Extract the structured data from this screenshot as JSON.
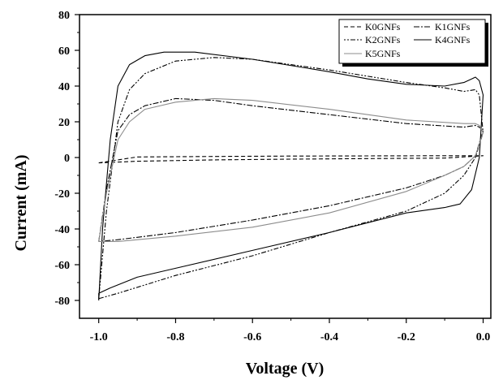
{
  "chart_data": {
    "type": "line",
    "title": "",
    "xlabel": "Voltage (V)",
    "ylabel": "Current (mA)",
    "xlim": [
      -1.05,
      0.02
    ],
    "ylim": [
      -90,
      80
    ],
    "x_ticks": [
      -1.0,
      -0.8,
      -0.6,
      -0.4,
      -0.2,
      0.0
    ],
    "x_tick_labels": [
      "-1.0",
      "-0.8",
      "-0.6",
      "-0.4",
      "-0.2",
      "0.0"
    ],
    "y_ticks": [
      -80,
      -60,
      -40,
      -20,
      0,
      20,
      40,
      60,
      80
    ],
    "y_tick_labels": [
      "-80",
      "-60",
      "-40",
      "-20",
      "0",
      "20",
      "40",
      "60",
      "80"
    ],
    "grid": false,
    "legend_position": "top-right",
    "series": [
      {
        "name": "K0GNFs",
        "dash": "5,3",
        "x": [
          -1.0,
          -0.9,
          -0.7,
          -0.5,
          -0.3,
          -0.1,
          0.0,
          -0.1,
          -0.3,
          -0.5,
          -0.7,
          -0.9,
          -1.0
        ],
        "y": [
          -3,
          0.3,
          0.6,
          0.8,
          0.9,
          1.0,
          1.0,
          -0.3,
          -0.6,
          -0.9,
          -1.3,
          -2.1,
          -3
        ]
      },
      {
        "name": "K1GNFs",
        "dash": "7,2,2,2",
        "x": [
          -1.0,
          -0.98,
          -0.95,
          -0.92,
          -0.88,
          -0.8,
          -0.7,
          -0.6,
          -0.4,
          -0.2,
          -0.05,
          -0.02,
          -0.01,
          0.0,
          -0.02,
          -0.05,
          -0.1,
          -0.2,
          -0.4,
          -0.6,
          -0.8,
          -0.95,
          -1.0
        ],
        "y": [
          -47,
          -18,
          15,
          24,
          29,
          33,
          32,
          29,
          24,
          19,
          17,
          18,
          17,
          15,
          1,
          -5,
          -10,
          -17,
          -27,
          -35,
          -42,
          -46,
          -47
        ]
      },
      {
        "name": "K2GNFs",
        "dash": "2,2,2,2,6,2",
        "x": [
          -1.0,
          -0.98,
          -0.95,
          -0.92,
          -0.88,
          -0.8,
          -0.7,
          -0.6,
          -0.5,
          -0.4,
          -0.2,
          -0.1,
          -0.05,
          -0.02,
          -0.01,
          0.0,
          -0.02,
          -0.05,
          -0.1,
          -0.2,
          -0.4,
          -0.6,
          -0.8,
          -0.95,
          -1.0
        ],
        "y": [
          -79,
          -30,
          20,
          38,
          47,
          54,
          56,
          55,
          52,
          49,
          42,
          39,
          37,
          38,
          35,
          14,
          0,
          -10,
          -20,
          -30,
          -42,
          -55,
          -66,
          -76,
          -79
        ]
      },
      {
        "name": "K4GNFs",
        "dash": "",
        "x": [
          -1.0,
          -0.99,
          -0.97,
          -0.95,
          -0.92,
          -0.88,
          -0.83,
          -0.75,
          -0.6,
          -0.4,
          -0.3,
          -0.2,
          -0.1,
          -0.05,
          -0.03,
          -0.02,
          -0.01,
          0.0,
          -0.01,
          -0.03,
          -0.06,
          -0.1,
          -0.2,
          -0.4,
          -0.6,
          -0.8,
          -0.9,
          -0.97,
          -1.0,
          -1.0
        ],
        "y": [
          -80,
          -40,
          10,
          40,
          52,
          57,
          59,
          59,
          55,
          48,
          44,
          41,
          40,
          42,
          44,
          45,
          43,
          35,
          0,
          -18,
          -26,
          -28,
          -31,
          -42,
          -52,
          -62,
          -67,
          -73,
          -76,
          -80
        ]
      },
      {
        "name": "K5GNFs",
        "dash": "",
        "color": "#8c8c8c",
        "x": [
          -1.0,
          -0.98,
          -0.95,
          -0.92,
          -0.88,
          -0.8,
          -0.7,
          -0.6,
          -0.4,
          -0.2,
          -0.05,
          -0.02,
          -0.01,
          0.0,
          -0.02,
          -0.05,
          -0.1,
          -0.2,
          -0.4,
          -0.6,
          -0.8,
          -0.95,
          -1.0
        ],
        "y": [
          -47,
          -20,
          10,
          20,
          27,
          31,
          33,
          32,
          27,
          21,
          19,
          19,
          18,
          14,
          1,
          -5,
          -10,
          -19,
          -31,
          -39,
          -44,
          -47,
          -47
        ]
      }
    ]
  }
}
